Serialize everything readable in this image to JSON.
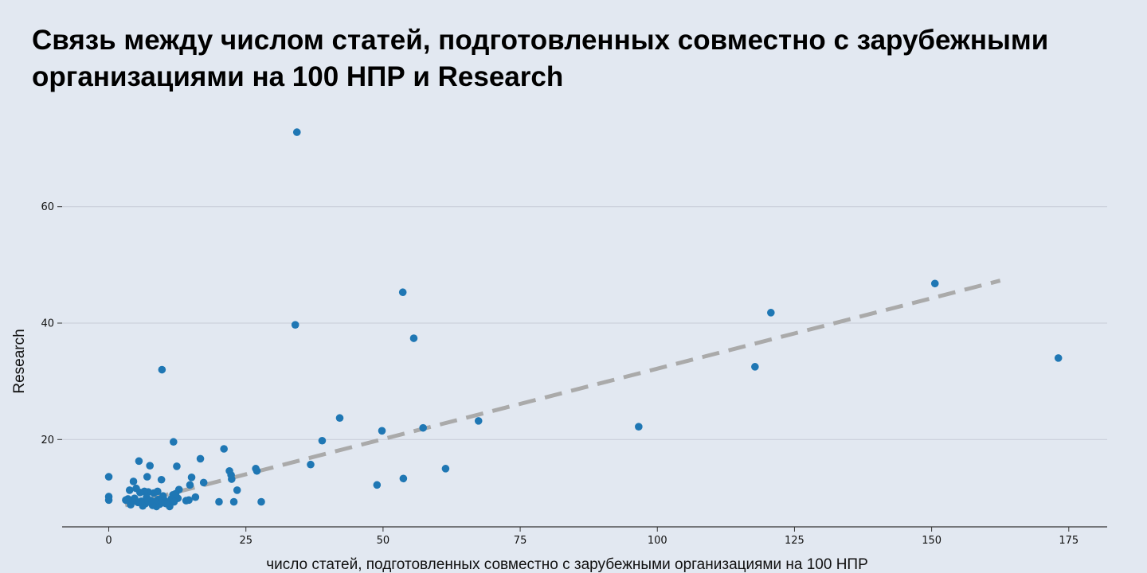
{
  "page": {
    "title": "Связь между числом статей, подготовленных совместно с зарубежными организациями на 100 НПР и Research"
  },
  "colors": {
    "background": "#e2e8f1",
    "point": "#1f77b4",
    "trend": "#aaaaaa",
    "grid": "#c8ccd8",
    "axis": "#333333"
  },
  "chart_data": {
    "type": "scatter",
    "title": "Связь между числом статей, подготовленных совместно с зарубежными организациями на 100 НПР и Research",
    "xlabel": "число статей, подготовленных совместно с зарубежными организациями на 100 НПР",
    "ylabel": "Research",
    "xlim": [
      -8.5,
      182
    ],
    "ylim": [
      5,
      75
    ],
    "x_ticks": [
      0,
      25,
      50,
      75,
      100,
      125,
      150,
      175
    ],
    "y_ticks": [
      20,
      40,
      60
    ],
    "grid": "horizontal",
    "trendline": {
      "style": "dashed",
      "x": [
        3,
        162.5
      ],
      "y": [
        8.7,
        47.3
      ]
    },
    "points": [
      [
        34.3,
        72.8
      ],
      [
        34.0,
        39.7
      ],
      [
        53.6,
        45.3
      ],
      [
        55.6,
        37.4
      ],
      [
        9.7,
        32.0
      ],
      [
        150.6,
        46.8
      ],
      [
        120.7,
        41.8
      ],
      [
        117.8,
        32.5
      ],
      [
        173.1,
        34.0
      ],
      [
        96.6,
        22.2
      ],
      [
        67.4,
        23.2
      ],
      [
        61.4,
        15.0
      ],
      [
        57.3,
        22.0
      ],
      [
        53.7,
        13.3
      ],
      [
        49.8,
        21.5
      ],
      [
        48.9,
        12.2
      ],
      [
        42.1,
        23.7
      ],
      [
        38.9,
        19.8
      ],
      [
        36.8,
        15.7
      ],
      [
        27.8,
        9.3
      ],
      [
        27.0,
        14.6
      ],
      [
        26.8,
        15.0
      ],
      [
        23.4,
        11.3
      ],
      [
        22.8,
        9.3
      ],
      [
        22.4,
        13.2
      ],
      [
        22.3,
        13.9
      ],
      [
        22.0,
        14.6
      ],
      [
        21.0,
        18.4
      ],
      [
        20.1,
        9.3
      ],
      [
        17.3,
        12.6
      ],
      [
        16.7,
        16.7
      ],
      [
        15.8,
        10.1
      ],
      [
        15.1,
        13.5
      ],
      [
        14.8,
        12.2
      ],
      [
        14.1,
        9.5
      ],
      [
        12.8,
        11.4
      ],
      [
        12.6,
        9.9
      ],
      [
        12.4,
        15.4
      ],
      [
        11.8,
        19.6
      ],
      [
        11.7,
        10.5
      ],
      [
        11.4,
        9.8
      ],
      [
        11.1,
        8.5
      ],
      [
        10.6,
        9.2
      ],
      [
        10.1,
        9.6
      ],
      [
        9.9,
        10.3
      ],
      [
        9.6,
        13.1
      ],
      [
        9.3,
        8.9
      ],
      [
        9.0,
        9.7
      ],
      [
        8.7,
        8.5
      ],
      [
        8.4,
        9.3
      ],
      [
        8.2,
        10.8
      ],
      [
        8.0,
        8.7
      ],
      [
        7.7,
        9.5
      ],
      [
        7.5,
        15.5
      ],
      [
        7.2,
        11.0
      ],
      [
        7.0,
        13.6
      ],
      [
        6.7,
        9.0
      ],
      [
        6.5,
        11.1
      ],
      [
        6.2,
        8.6
      ],
      [
        5.9,
        9.4
      ],
      [
        5.7,
        10.9
      ],
      [
        5.5,
        16.3
      ],
      [
        5.3,
        9.2
      ],
      [
        5.0,
        11.6
      ],
      [
        4.7,
        9.9
      ],
      [
        4.5,
        12.8
      ],
      [
        4.2,
        9.5
      ],
      [
        4.0,
        8.8
      ],
      [
        3.8,
        11.3
      ],
      [
        3.5,
        9.8
      ],
      [
        3.1,
        9.6
      ],
      [
        0.0,
        13.6
      ],
      [
        0.0,
        10.2
      ],
      [
        0.0,
        9.6
      ],
      [
        10.4,
        9.0
      ],
      [
        8.9,
        11.1
      ],
      [
        12.2,
        10.7
      ],
      [
        14.6,
        9.6
      ],
      [
        6.9,
        10.1
      ],
      [
        11.9,
        9.3
      ]
    ]
  }
}
